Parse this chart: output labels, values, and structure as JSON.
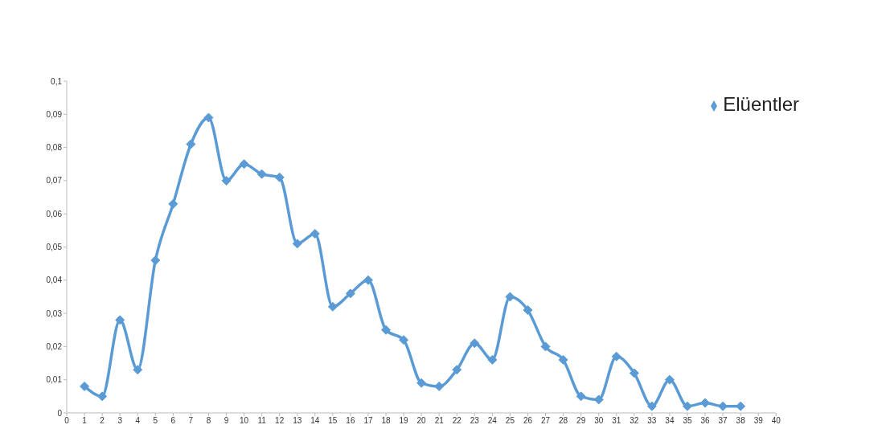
{
  "chart_data": {
    "type": "line",
    "x": [
      1,
      2,
      3,
      4,
      5,
      6,
      7,
      8,
      9,
      10,
      11,
      12,
      13,
      14,
      15,
      16,
      17,
      18,
      19,
      20,
      21,
      22,
      23,
      24,
      25,
      26,
      27,
      28,
      29,
      30,
      31,
      32,
      33,
      34,
      35,
      36,
      37,
      38
    ],
    "series": [
      {
        "name": "Elüentler",
        "color": "#5b9bd5",
        "values": [
          0.008,
          0.005,
          0.028,
          0.013,
          0.046,
          0.063,
          0.081,
          0.089,
          0.07,
          0.075,
          0.072,
          0.071,
          0.051,
          0.054,
          0.032,
          0.036,
          0.04,
          0.025,
          0.022,
          0.009,
          0.008,
          0.013,
          0.021,
          0.016,
          0.035,
          0.031,
          0.02,
          0.016,
          0.005,
          0.004,
          0.017,
          0.012,
          0.002,
          0.01,
          0.002,
          0.003,
          0.002,
          0.002
        ]
      }
    ],
    "xlim": [
      0,
      40
    ],
    "xticks": [
      0,
      1,
      2,
      3,
      4,
      5,
      6,
      7,
      8,
      9,
      10,
      11,
      12,
      13,
      14,
      15,
      16,
      17,
      18,
      19,
      20,
      21,
      22,
      23,
      24,
      25,
      26,
      27,
      28,
      29,
      30,
      31,
      32,
      33,
      34,
      35,
      36,
      37,
      38,
      39,
      40
    ],
    "ylim": [
      0,
      0.1
    ],
    "yticks": [
      {
        "value": 0,
        "label": "0"
      },
      {
        "value": 0.01,
        "label": "0,01"
      },
      {
        "value": 0.02,
        "label": "0,02"
      },
      {
        "value": 0.03,
        "label": "0,03"
      },
      {
        "value": 0.04,
        "label": "0,04"
      },
      {
        "value": 0.05,
        "label": "0,05"
      },
      {
        "value": 0.06,
        "label": "0,06"
      },
      {
        "value": 0.07,
        "label": "0,07"
      },
      {
        "value": 0.08,
        "label": "0,08"
      },
      {
        "value": 0.09,
        "label": "0,09"
      },
      {
        "value": 0.1,
        "label": "0,1"
      }
    ],
    "grid": false,
    "legend": "top right",
    "marker": "diamond",
    "line_style": "solid"
  }
}
